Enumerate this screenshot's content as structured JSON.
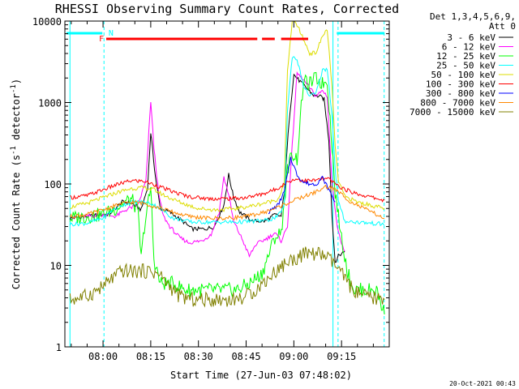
{
  "chart_data": {
    "type": "line",
    "title": "RHESSI Observing Summary Count Rates, Corrected",
    "xlabel": "Start Time (27-Jun-03 07:48:02)",
    "ylabel": "Corrected Count Rate (s",
    "ylabel_sup": "-1",
    "ylabel_tail": " detector",
    "ylabel_sup2": "-1",
    "ylabel_end": ")",
    "yscale": "log",
    "xlim": [
      -12,
      90
    ],
    "ylim": [
      1,
      10000
    ],
    "x_ticks": [
      {
        "x": 0,
        "label": "08:00"
      },
      {
        "x": 15,
        "label": "08:15"
      },
      {
        "x": 30,
        "label": "08:30"
      },
      {
        "x": 45,
        "label": "08:45"
      },
      {
        "x": 60,
        "label": "09:00"
      },
      {
        "x": 75,
        "label": "09:15"
      }
    ],
    "y_ticks": [
      {
        "y": 1,
        "label": "1"
      },
      {
        "y": 10,
        "label": "10"
      },
      {
        "y": 100,
        "label": "100"
      },
      {
        "y": 1000,
        "label": "1000"
      },
      {
        "y": 10000,
        "label": "10000"
      }
    ],
    "legend_header": [
      "Det 1,3,4,5,6,9,",
      "Att 0"
    ],
    "series": [
      {
        "name": "3 - 6 keV",
        "color": "#000000",
        "points": [
          [
            -10.4,
            38
          ],
          [
            -5,
            40
          ],
          [
            2,
            43
          ],
          [
            6,
            60
          ],
          [
            9,
            58
          ],
          [
            12,
            48
          ],
          [
            14,
            90
          ],
          [
            15,
            430
          ],
          [
            16.5,
            120
          ],
          [
            18,
            50
          ],
          [
            21,
            45
          ],
          [
            25,
            35
          ],
          [
            28,
            28
          ],
          [
            32,
            28
          ],
          [
            35,
            30
          ],
          [
            38,
            55
          ],
          [
            39.5,
            130
          ],
          [
            41,
            70
          ],
          [
            43,
            45
          ],
          [
            47,
            35
          ],
          [
            51,
            35
          ],
          [
            54,
            42
          ],
          [
            56,
            40
          ],
          [
            57,
            80
          ],
          [
            58.5,
            600
          ],
          [
            60,
            2200
          ],
          [
            62,
            1800
          ],
          [
            64,
            1500
          ],
          [
            66.5,
            1200
          ],
          [
            68,
            1200
          ],
          [
            69.5,
            1100
          ],
          [
            71,
            350
          ],
          [
            72,
            40
          ],
          [
            73,
            11
          ],
          [
            74,
            13
          ],
          [
            76,
            15
          ]
        ]
      },
      {
        "name": "6 - 12 keV",
        "color": "#ff00ff",
        "points": [
          [
            -10.4,
            38
          ],
          [
            -5,
            40
          ],
          [
            0,
            42
          ],
          [
            4,
            40
          ],
          [
            6,
            45
          ],
          [
            8,
            50
          ],
          [
            11,
            55
          ],
          [
            13.5,
            110
          ],
          [
            15,
            1050
          ],
          [
            16,
            280
          ],
          [
            17.5,
            75
          ],
          [
            19,
            40
          ],
          [
            21,
            30
          ],
          [
            24,
            22
          ],
          [
            27,
            19
          ],
          [
            31,
            20
          ],
          [
            34,
            24
          ],
          [
            36.5,
            45
          ],
          [
            38,
            120
          ],
          [
            39.5,
            75
          ],
          [
            41,
            35
          ],
          [
            44,
            20
          ],
          [
            46,
            13
          ],
          [
            48,
            18
          ],
          [
            52,
            22
          ],
          [
            54,
            25
          ],
          [
            56,
            20
          ],
          [
            58,
            30
          ],
          [
            59.5,
            300
          ],
          [
            61,
            2300
          ],
          [
            63,
            1900
          ],
          [
            65,
            1500
          ],
          [
            67,
            1200
          ],
          [
            69,
            1400
          ],
          [
            70.5,
            1200
          ],
          [
            72,
            100
          ],
          [
            73,
            50
          ],
          [
            74,
            25
          ],
          [
            76,
            15
          ]
        ]
      },
      {
        "name": "12 - 25 keV",
        "color": "#00ff00",
        "points": [
          [
            -10.4,
            38
          ],
          [
            -5,
            40
          ],
          [
            0,
            42
          ],
          [
            4,
            50
          ],
          [
            7,
            60
          ],
          [
            9,
            65
          ],
          [
            11,
            45
          ],
          [
            12,
            12
          ],
          [
            13,
            30
          ],
          [
            15,
            90
          ],
          [
            16,
            12
          ],
          [
            18,
            6
          ],
          [
            22,
            6
          ],
          [
            26,
            5
          ],
          [
            30,
            5
          ],
          [
            34,
            5
          ],
          [
            38,
            5
          ],
          [
            42,
            5
          ],
          [
            46,
            6
          ],
          [
            50,
            8
          ],
          [
            54,
            22
          ],
          [
            56,
            25
          ],
          [
            58,
            150
          ],
          [
            59.5,
            240
          ],
          [
            61,
            200
          ],
          [
            63,
            1800
          ],
          [
            65,
            1700
          ],
          [
            67,
            2000
          ],
          [
            69,
            1700
          ],
          [
            70.5,
            1900
          ],
          [
            72,
            300
          ],
          [
            73,
            80
          ],
          [
            74,
            40
          ],
          [
            75,
            22
          ],
          [
            77,
            8
          ],
          [
            79,
            5
          ],
          [
            81,
            5
          ],
          [
            83,
            5
          ],
          [
            86,
            5
          ],
          [
            88.5,
            2.5
          ]
        ]
      },
      {
        "name": "25 - 50 keV",
        "color": "#00ffff",
        "points": [
          [
            -10.4,
            32
          ],
          [
            -5,
            33
          ],
          [
            0,
            38
          ],
          [
            3,
            48
          ],
          [
            6,
            55
          ],
          [
            9,
            60
          ],
          [
            12,
            60
          ],
          [
            15,
            58
          ],
          [
            18,
            50
          ],
          [
            22,
            38
          ],
          [
            28,
            34
          ],
          [
            35,
            34
          ],
          [
            42,
            34
          ],
          [
            48,
            35
          ],
          [
            52,
            36
          ],
          [
            55,
            40
          ],
          [
            57,
            55
          ],
          [
            58,
            800
          ],
          [
            59.5,
            3700
          ],
          [
            61,
            3400
          ],
          [
            63,
            1600
          ],
          [
            65,
            1200
          ],
          [
            67,
            1300
          ],
          [
            69,
            2500
          ],
          [
            70.5,
            2600
          ],
          [
            72,
            700
          ],
          [
            73,
            150
          ],
          [
            74,
            60
          ],
          [
            76,
            35
          ],
          [
            80,
            34
          ],
          [
            84,
            33
          ],
          [
            88.5,
            32
          ]
        ]
      },
      {
        "name": "50 - 100 keV",
        "color": "#dddd00",
        "points": [
          [
            -10.4,
            52
          ],
          [
            -5,
            58
          ],
          [
            0,
            68
          ],
          [
            5,
            80
          ],
          [
            9,
            88
          ],
          [
            13,
            90
          ],
          [
            16,
            85
          ],
          [
            20,
            70
          ],
          [
            25,
            58
          ],
          [
            30,
            50
          ],
          [
            36,
            48
          ],
          [
            42,
            50
          ],
          [
            48,
            55
          ],
          [
            52,
            60
          ],
          [
            55,
            65
          ],
          [
            57,
            100
          ],
          [
            58,
            2500
          ],
          [
            59.5,
            10000
          ],
          [
            61,
            9000
          ],
          [
            63,
            6000
          ],
          [
            65,
            4000
          ],
          [
            67,
            4100
          ],
          [
            69,
            6500
          ],
          [
            70.5,
            8000
          ],
          [
            72,
            1500
          ],
          [
            73,
            300
          ],
          [
            74,
            110
          ],
          [
            76,
            70
          ],
          [
            80,
            60
          ],
          [
            84,
            55
          ],
          [
            88.5,
            50
          ]
        ]
      },
      {
        "name": "100 - 300 keV",
        "color": "#ff0000",
        "points": [
          [
            -10.4,
            68
          ],
          [
            -5,
            72
          ],
          [
            0,
            85
          ],
          [
            5,
            100
          ],
          [
            9,
            110
          ],
          [
            13,
            108
          ],
          [
            17,
            95
          ],
          [
            22,
            80
          ],
          [
            27,
            70
          ],
          [
            33,
            66
          ],
          [
            39,
            66
          ],
          [
            45,
            68
          ],
          [
            50,
            75
          ],
          [
            54,
            85
          ],
          [
            57,
            100
          ],
          [
            59,
            110
          ],
          [
            61,
            115
          ],
          [
            63,
            110
          ],
          [
            66,
            110
          ],
          [
            69,
            115
          ],
          [
            71,
            115
          ],
          [
            73,
            100
          ],
          [
            75,
            90
          ],
          [
            78,
            80
          ],
          [
            82,
            72
          ],
          [
            85,
            68
          ],
          [
            88.5,
            63
          ]
        ]
      },
      {
        "name": "300 - 800 keV",
        "color": "#0000ff",
        "points": [
          [
            52,
            45
          ],
          [
            55,
            55
          ],
          [
            57,
            80
          ],
          [
            59,
            210
          ],
          [
            61,
            130
          ],
          [
            63,
            105
          ],
          [
            65,
            100
          ],
          [
            67,
            100
          ],
          [
            69,
            120
          ],
          [
            71,
            85
          ],
          [
            73,
            60
          ]
        ]
      },
      {
        "name": "800 - 7000 keV",
        "color": "#ff8800",
        "points": [
          [
            -10.4,
            40
          ],
          [
            -5,
            42
          ],
          [
            0,
            48
          ],
          [
            5,
            56
          ],
          [
            9,
            60
          ],
          [
            13,
            58
          ],
          [
            17,
            52
          ],
          [
            22,
            45
          ],
          [
            27,
            40
          ],
          [
            33,
            38
          ],
          [
            39,
            38
          ],
          [
            45,
            40
          ],
          [
            50,
            44
          ],
          [
            54,
            50
          ],
          [
            58,
            58
          ],
          [
            61,
            65
          ],
          [
            64,
            72
          ],
          [
            67,
            80
          ],
          [
            70,
            92
          ],
          [
            72,
            90
          ],
          [
            75,
            75
          ],
          [
            78,
            60
          ],
          [
            82,
            50
          ],
          [
            85,
            44
          ],
          [
            88.5,
            38
          ]
        ]
      },
      {
        "name": "7000 - 15000 keV",
        "color": "#808000",
        "points": [
          [
            -10.4,
            3.8
          ],
          [
            -5,
            4.2
          ],
          [
            0,
            5.5
          ],
          [
            3,
            7
          ],
          [
            6,
            8.5
          ],
          [
            9,
            8.5
          ],
          [
            12,
            8.5
          ],
          [
            15,
            8.5
          ],
          [
            18,
            7.5
          ],
          [
            21,
            5.5
          ],
          [
            24,
            4.2
          ],
          [
            28,
            3.8
          ],
          [
            32,
            3.8
          ],
          [
            36,
            3.8
          ],
          [
            40,
            3.8
          ],
          [
            44,
            4
          ],
          [
            48,
            5
          ],
          [
            52,
            7
          ],
          [
            55,
            9
          ],
          [
            58,
            11
          ],
          [
            61,
            12.5
          ],
          [
            64,
            14
          ],
          [
            67,
            14
          ],
          [
            70,
            13
          ],
          [
            72,
            11
          ],
          [
            74,
            9
          ],
          [
            77,
            6
          ],
          [
            80,
            4.5
          ],
          [
            84,
            4
          ],
          [
            88.5,
            3.8
          ]
        ]
      }
    ],
    "flag_lines": [
      {
        "color": "#00ffff",
        "segments": [
          [
            -11.5,
            -0.2
          ],
          [
            73.5,
            88.5
          ]
        ]
      },
      {
        "color": "#ff0000",
        "segments": [
          [
            1,
            48.5
          ],
          [
            50,
            54
          ],
          [
            56,
            64.5
          ]
        ]
      }
    ],
    "flag_labels": [
      {
        "text": "F",
        "x": -0.5,
        "color": "#ff0000"
      },
      {
        "text": "N",
        "x": 2.5,
        "color": "#00ffff"
      }
    ],
    "vlines": [
      {
        "x": -10.4,
        "color": "#00ffff",
        "style": "solid"
      },
      {
        "x": 0.3,
        "color": "#00ffff",
        "style": "dashed"
      },
      {
        "x": 72.3,
        "color": "#00ffff",
        "style": "solid"
      },
      {
        "x": 73.9,
        "color": "#00ffff",
        "style": "dashed"
      },
      {
        "x": 88.4,
        "color": "#00ffff",
        "style": "dashed"
      }
    ]
  },
  "footer": {
    "date": "20-Oct-2021 00:43"
  }
}
